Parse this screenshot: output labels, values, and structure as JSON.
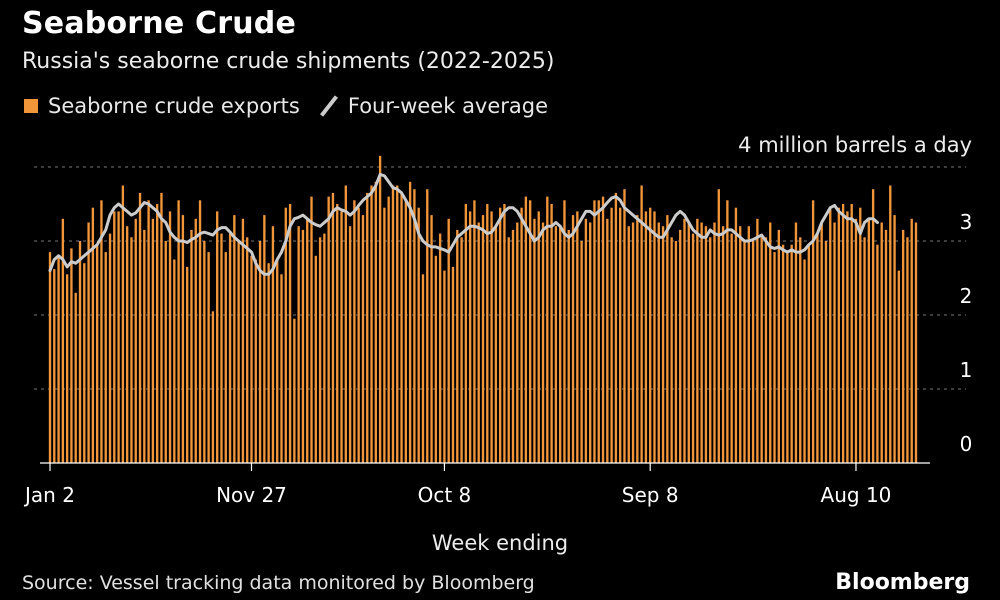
{
  "header": {
    "title": "Seaborne Crude",
    "subtitle": "Russia's seaborne crude shipments (2022-2025)"
  },
  "legend": {
    "bars_label": "Seaborne crude exports",
    "line_label": "Four-week average"
  },
  "colors": {
    "bar": "#f0953a",
    "line": "#cccccc",
    "grid": "#777777",
    "background": "#000000"
  },
  "footer": {
    "source": "Source: Vessel tracking data monitored by Bloomberg",
    "brand": "Bloomberg"
  },
  "chart_data": {
    "type": "bar",
    "title": "Seaborne Crude",
    "subtitle": "Russia's seaborne crude shipments (2022-2025)",
    "xlabel": "Week ending",
    "ylabel": "4 million barrels a day",
    "ylim": [
      0,
      4
    ],
    "yticks": [
      0,
      1,
      2,
      3
    ],
    "y_unit_label": "4 million barrels a day",
    "grid": true,
    "x_tick_labels": [
      {
        "label": "Jan 2",
        "index": 0
      },
      {
        "label": "Nov 27",
        "index": 47
      },
      {
        "label": "Oct 8",
        "index": 92
      },
      {
        "label": "Sep 8",
        "index": 140
      },
      {
        "label": "Aug 10",
        "index": 188
      }
    ],
    "series": [
      {
        "name": "Seaborne crude exports",
        "type": "bar",
        "values": [
          2.85,
          2.62,
          2.8,
          3.3,
          2.55,
          2.9,
          2.3,
          3.0,
          2.7,
          3.25,
          3.45,
          2.95,
          3.55,
          2.85,
          3.1,
          3.4,
          3.4,
          3.75,
          3.2,
          3.05,
          3.3,
          3.65,
          3.15,
          3.55,
          3.3,
          3.5,
          3.65,
          3.0,
          3.4,
          2.75,
          3.55,
          3.35,
          2.65,
          3.15,
          3.3,
          3.55,
          3.0,
          2.85,
          2.05,
          3.4,
          3.1,
          2.85,
          3.1,
          3.35,
          3.0,
          3.3,
          3.05,
          2.8,
          2.75,
          3.0,
          3.35,
          2.7,
          3.2,
          2.75,
          2.55,
          3.45,
          3.5,
          1.95,
          3.2,
          3.15,
          3.3,
          3.6,
          2.8,
          3.05,
          3.1,
          3.6,
          3.65,
          3.5,
          3.4,
          3.75,
          3.2,
          3.55,
          3.45,
          3.35,
          3.65,
          3.75,
          3.8,
          4.15,
          3.45,
          3.6,
          3.75,
          3.75,
          3.65,
          3.55,
          3.8,
          3.7,
          3.45,
          2.55,
          3.7,
          3.35,
          2.8,
          3.1,
          2.6,
          3.3,
          2.65,
          3.15,
          3.05,
          3.5,
          3.4,
          3.55,
          3.25,
          3.35,
          3.5,
          3.4,
          3.2,
          3.45,
          3.5,
          3.05,
          3.15,
          3.25,
          3.45,
          3.6,
          3.55,
          3.3,
          3.4,
          3.25,
          3.6,
          3.5,
          3.2,
          3.2,
          3.55,
          3.15,
          3.35,
          3.4,
          3.0,
          3.3,
          3.25,
          3.55,
          3.55,
          3.6,
          3.3,
          3.45,
          3.65,
          3.45,
          3.7,
          3.2,
          3.25,
          3.35,
          3.75,
          3.4,
          3.45,
          3.4,
          3.25,
          3.2,
          3.35,
          3.05,
          3.0,
          3.15,
          3.3,
          3.25,
          3.1,
          3.3,
          3.25,
          3.2,
          3.05,
          3.25,
          3.7,
          3.2,
          3.55,
          3.1,
          3.45,
          3.2,
          3.0,
          3.2,
          3.0,
          3.3,
          3.05,
          3.05,
          3.25,
          2.85,
          3.15,
          2.95,
          2.85,
          2.95,
          3.25,
          3.05,
          2.75,
          2.95,
          3.55,
          3.1,
          3.25,
          3.0,
          3.45,
          3.25,
          3.45,
          3.5,
          3.4,
          3.5,
          3.3,
          3.45,
          3.05,
          3.3,
          3.7,
          2.95,
          3.25,
          3.15,
          3.75,
          3.35,
          2.6,
          3.15,
          3.05,
          3.3,
          3.25
        ]
      },
      {
        "name": "Four-week average",
        "type": "line",
        "values": [
          2.6,
          2.75,
          2.8,
          2.75,
          2.65,
          2.72,
          2.7,
          2.75,
          2.8,
          2.85,
          2.9,
          2.95,
          3.05,
          3.15,
          3.35,
          3.45,
          3.5,
          3.45,
          3.4,
          3.35,
          3.38,
          3.45,
          3.52,
          3.5,
          3.45,
          3.4,
          3.3,
          3.25,
          3.12,
          3.05,
          3.0,
          3.0,
          2.98,
          3.02,
          3.05,
          3.1,
          3.12,
          3.1,
          3.08,
          3.15,
          3.18,
          3.18,
          3.12,
          3.05,
          3.0,
          2.95,
          2.9,
          2.85,
          2.7,
          2.6,
          2.55,
          2.55,
          2.62,
          2.75,
          2.85,
          3.0,
          3.2,
          3.3,
          3.32,
          3.35,
          3.3,
          3.25,
          3.22,
          3.2,
          3.25,
          3.3,
          3.4,
          3.45,
          3.42,
          3.4,
          3.35,
          3.4,
          3.48,
          3.55,
          3.6,
          3.65,
          3.75,
          3.9,
          3.88,
          3.8,
          3.72,
          3.7,
          3.65,
          3.55,
          3.45,
          3.3,
          3.1,
          3.0,
          2.95,
          2.92,
          2.92,
          2.9,
          2.88,
          2.85,
          2.95,
          3.05,
          3.1,
          3.15,
          3.2,
          3.2,
          3.18,
          3.15,
          3.1,
          3.12,
          3.2,
          3.3,
          3.4,
          3.45,
          3.45,
          3.4,
          3.3,
          3.2,
          3.1,
          3.0,
          3.05,
          3.15,
          3.2,
          3.2,
          3.25,
          3.2,
          3.1,
          3.05,
          3.1,
          3.2,
          3.3,
          3.4,
          3.4,
          3.35,
          3.4,
          3.45,
          3.52,
          3.58,
          3.6,
          3.55,
          3.45,
          3.4,
          3.35,
          3.3,
          3.25,
          3.2,
          3.15,
          3.1,
          3.05,
          3.05,
          3.15,
          3.25,
          3.35,
          3.4,
          3.35,
          3.25,
          3.15,
          3.1,
          3.05,
          3.05,
          3.15,
          3.1,
          3.08,
          3.1,
          3.15,
          3.15,
          3.1,
          3.05,
          3.0,
          3.0,
          3.02,
          3.05,
          3.08,
          3.0,
          2.92,
          2.9,
          2.92,
          2.88,
          2.85,
          2.88,
          2.85,
          2.85,
          2.88,
          2.95,
          3.0,
          3.1,
          3.25,
          3.35,
          3.45,
          3.48,
          3.4,
          3.35,
          3.3,
          3.3,
          3.25,
          3.1,
          3.25,
          3.3,
          3.3,
          3.25
        ]
      }
    ]
  }
}
